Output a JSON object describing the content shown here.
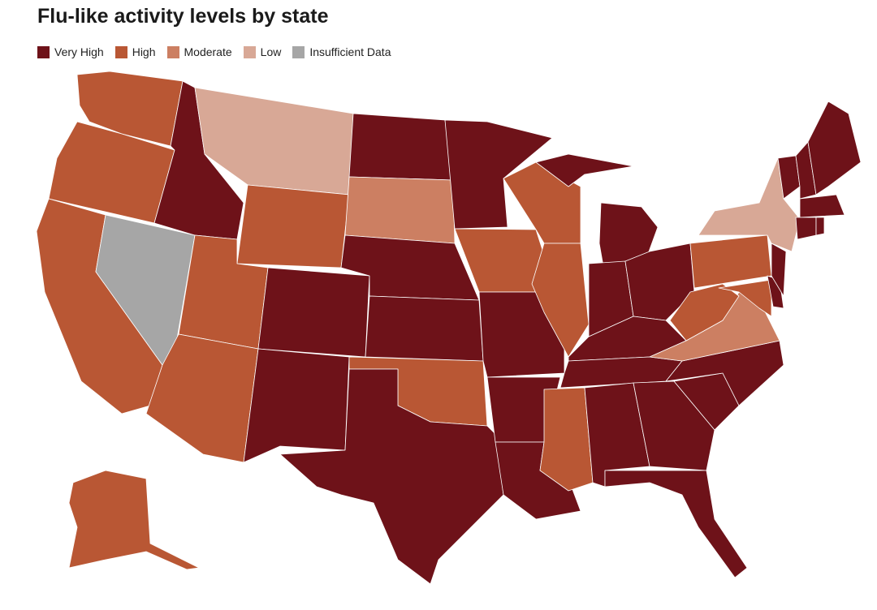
{
  "title": "Flu-like activity levels by state",
  "legend": [
    {
      "label": "Very High",
      "color": "#6e1219"
    },
    {
      "label": "High",
      "color": "#b95734"
    },
    {
      "label": "Moderate",
      "color": "#cc7f62"
    },
    {
      "label": "Low",
      "color": "#d8a896"
    },
    {
      "label": "Insufficient Data",
      "color": "#a6a6a6"
    }
  ],
  "states": [
    {
      "level": "High"
    },
    {
      "level": "High"
    },
    {
      "level": "High"
    },
    {
      "level": "Insufficient Data"
    },
    {
      "level": "Very High"
    },
    {
      "level": "Low"
    },
    {
      "level": "High"
    },
    {
      "level": "High"
    },
    {
      "level": "High"
    },
    {
      "level": "Very High"
    },
    {
      "level": "Very High"
    },
    {
      "level": "Very High"
    },
    {
      "level": "Moderate"
    },
    {
      "level": "Very High"
    },
    {
      "level": "Very High"
    },
    {
      "level": "High"
    },
    {
      "level": "Very High"
    },
    {
      "level": "Very High"
    },
    {
      "level": "High"
    },
    {
      "level": "Very High"
    },
    {
      "level": "Very High"
    },
    {
      "level": "Very High"
    },
    {
      "level": "High"
    },
    {
      "level": "High"
    },
    {
      "level": "Very High"
    },
    {
      "level": "Very High"
    },
    {
      "level": "Very High"
    },
    {
      "level": "Very High"
    },
    {
      "level": "Very High"
    },
    {
      "level": "High"
    },
    {
      "level": "Very High"
    },
    {
      "level": "Very High"
    },
    {
      "level": "Very High"
    },
    {
      "level": "Very High"
    },
    {
      "level": "Very High"
    },
    {
      "level": "Moderate"
    },
    {
      "level": "High"
    },
    {
      "level": "High"
    },
    {
      "level": "High"
    },
    {
      "level": "Very High"
    },
    {
      "level": "Very High"
    },
    {
      "level": "Low"
    },
    {
      "level": "Very High"
    },
    {
      "level": "Very High"
    },
    {
      "level": "Very High"
    },
    {
      "level": "Very High"
    },
    {
      "level": "Very High"
    },
    {
      "level": "Very High"
    },
    {
      "level": "High"
    }
  ]
}
